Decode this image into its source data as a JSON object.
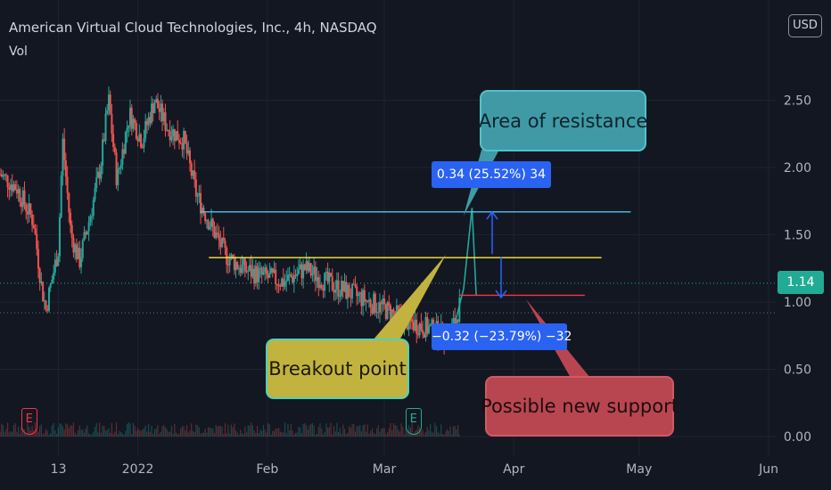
{
  "header": {
    "title": "American Virtual Cloud Technologies, Inc., 4h, NASDAQ",
    "volume_label": "Vol",
    "currency_button": "USD"
  },
  "colors": {
    "background": "#131722",
    "candle_up": "#26a69a",
    "candle_down": "#ef5350",
    "resistance_line": "#4fc3f7",
    "breakout_line": "#ffeb3b",
    "support_line": "#f23645",
    "measure": "#2962ff",
    "last_price": "#22ab94"
  },
  "annotations": {
    "resistance": "Area of resistance",
    "breakout": "Breakout point",
    "support": "Possible new support",
    "measure_up": "0.34 (25.52%) 34",
    "measure_down": "−0.32 (−23.79%) −32"
  },
  "events": [
    {
      "label": "E",
      "x": "2021-12-06",
      "color": "#f23645"
    },
    {
      "label": "E",
      "x": "2022-03-08",
      "color": "#22ab94"
    }
  ],
  "last_price": "1.14",
  "chart_data": {
    "type": "line",
    "title": "American Virtual Cloud Technologies, Inc., 4h, NASDAQ",
    "x_ticks": [
      "13",
      "2022",
      "Feb",
      "Mar",
      "Apr",
      "May",
      "Jun"
    ],
    "y_ticks": [
      "2.50",
      "2.00",
      "1.50",
      "1.00",
      "0.50",
      "0.00"
    ],
    "ylim": [
      0.0,
      2.8
    ],
    "xlim": [
      "2021-11-29",
      "2022-06-01"
    ],
    "grid": true,
    "series": [
      {
        "values": [
          {
            "x": "2021-11-29",
            "y": 1.95
          },
          {
            "x": "2021-12-03",
            "y": 1.85
          },
          {
            "x": "2021-12-07",
            "y": 1.6
          },
          {
            "x": "2021-12-09",
            "y": 1.1
          },
          {
            "x": "2021-12-10",
            "y": 0.95
          },
          {
            "x": "2021-12-13",
            "y": 1.4
          },
          {
            "x": "2021-12-14",
            "y": 2.2
          },
          {
            "x": "2021-12-16",
            "y": 1.5
          },
          {
            "x": "2021-12-18",
            "y": 1.3
          },
          {
            "x": "2021-12-21",
            "y": 1.7
          },
          {
            "x": "2021-12-23",
            "y": 2.0
          },
          {
            "x": "2021-12-25",
            "y": 2.5
          },
          {
            "x": "2021-12-27",
            "y": 1.9
          },
          {
            "x": "2021-12-30",
            "y": 2.4
          },
          {
            "x": "2022-01-02",
            "y": 2.2
          },
          {
            "x": "2022-01-05",
            "y": 2.5
          },
          {
            "x": "2022-01-08",
            "y": 2.3
          },
          {
            "x": "2022-01-12",
            "y": 2.2
          },
          {
            "x": "2022-01-15",
            "y": 1.8
          },
          {
            "x": "2022-01-18",
            "y": 1.6
          },
          {
            "x": "2022-01-22",
            "y": 1.35
          },
          {
            "x": "2022-01-26",
            "y": 1.25
          },
          {
            "x": "2022-01-30",
            "y": 1.2
          },
          {
            "x": "2022-02-05",
            "y": 1.15
          },
          {
            "x": "2022-02-10",
            "y": 1.25
          },
          {
            "x": "2022-02-15",
            "y": 1.15
          },
          {
            "x": "2022-02-22",
            "y": 1.05
          },
          {
            "x": "2022-03-01",
            "y": 0.95
          },
          {
            "x": "2022-03-07",
            "y": 0.85
          },
          {
            "x": "2022-03-12",
            "y": 0.8
          },
          {
            "x": "2022-03-16",
            "y": 0.75
          },
          {
            "x": "2022-03-18",
            "y": 0.85
          },
          {
            "x": "2022-03-20",
            "y": 1.1
          },
          {
            "x": "2022-03-21",
            "y": 1.4
          },
          {
            "x": "2022-03-22",
            "y": 1.7
          },
          {
            "x": "2022-03-23",
            "y": 1.05
          }
        ]
      }
    ],
    "reference_lines": [
      {
        "y": 1.67,
        "x_start": "2022-01-16",
        "x_end": "2022-04-29",
        "color": "#4fc3f7"
      },
      {
        "y": 1.33,
        "x_start": "2022-01-18",
        "x_end": "2022-04-22",
        "color": "#ffeb3b"
      },
      {
        "y": 1.05,
        "x_start": "2022-03-19",
        "x_end": "2022-04-18",
        "color": "#f23645"
      }
    ],
    "dotted_levels": [
      1.14,
      0.92
    ],
    "last_price": 1.14
  }
}
